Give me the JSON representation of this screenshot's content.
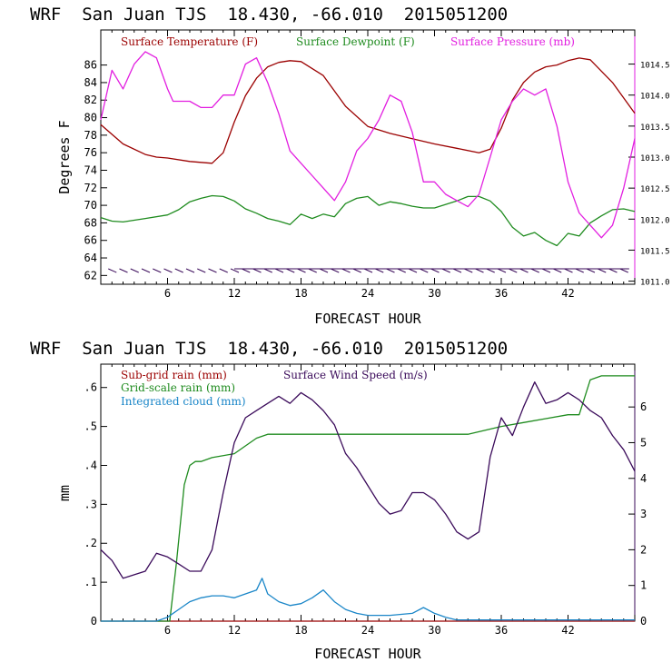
{
  "chart_data": [
    {
      "type": "line",
      "header": "WRF  San Juan TJS  18.430, -66.010  2015051200",
      "xlabel": "FORECAST HOUR",
      "ylabel": "Degrees F",
      "xlim": [
        0,
        48
      ],
      "ylim": [
        61,
        90
      ],
      "y2lim": [
        1010.95,
        1015.05
      ],
      "xticks": [
        6,
        12,
        18,
        24,
        30,
        36,
        42
      ],
      "yticks": [
        62,
        64,
        66,
        68,
        70,
        72,
        74,
        76,
        78,
        80,
        82,
        84,
        86
      ],
      "y2ticks": [
        1011.0,
        1011.5,
        1012.0,
        1012.5,
        1013.0,
        1013.5,
        1014.0,
        1014.5
      ],
      "legend_placement": "top-left, inside",
      "wind_barbs_row": true,
      "series": [
        {
          "name": "Surface Temperature (F)",
          "color": "#9b0000",
          "axis": "left",
          "x": [
            0,
            2,
            4,
            5,
            6,
            8,
            10,
            11,
            12,
            13,
            14,
            15,
            16,
            17,
            18,
            20,
            22,
            24,
            26,
            28,
            30,
            32,
            34,
            35,
            36,
            37,
            38,
            39,
            40,
            41,
            42,
            43,
            44,
            46,
            48
          ],
          "y": [
            79.2,
            77,
            75.8,
            75.5,
            75.4,
            75,
            74.8,
            76,
            79.5,
            82.5,
            84.5,
            85.8,
            86.3,
            86.5,
            86.4,
            84.8,
            81.3,
            79,
            78.2,
            77.6,
            77,
            76.5,
            76,
            76.4,
            78.8,
            82,
            84,
            85.2,
            85.8,
            86,
            86.5,
            86.8,
            86.6,
            84,
            80.5
          ]
        },
        {
          "name": "Surface Dewpoint (F)",
          "color": "#1e8b1e",
          "axis": "left",
          "x": [
            0,
            1,
            2,
            4,
            6,
            7,
            8,
            9,
            10,
            11,
            12,
            13,
            14,
            15,
            16,
            17,
            18,
            19,
            20,
            21,
            22,
            23,
            24,
            25,
            26,
            27,
            28,
            29,
            30,
            31,
            32,
            33,
            34,
            35,
            36,
            37,
            38,
            39,
            40,
            41,
            42,
            43,
            44,
            45,
            46,
            47,
            48
          ],
          "y": [
            68.6,
            68.2,
            68.1,
            68.5,
            68.9,
            69.5,
            70.4,
            70.8,
            71.1,
            71,
            70.5,
            69.6,
            69.1,
            68.5,
            68.2,
            67.8,
            69,
            68.5,
            69,
            68.7,
            70.2,
            70.8,
            71,
            70,
            70.4,
            70.2,
            69.9,
            69.7,
            69.7,
            70.1,
            70.5,
            71,
            71,
            70.5,
            69.3,
            67.5,
            66.5,
            66.9,
            66,
            65.4,
            66.8,
            66.5,
            68,
            68.8,
            69.5,
            69.6,
            69.3
          ]
        },
        {
          "name": "Surface Pressure (mb)",
          "color": "#e21ee0",
          "axis": "right",
          "x": [
            0,
            1,
            2,
            3,
            4,
            5,
            6,
            6.5,
            7,
            8,
            9,
            10,
            11,
            12,
            13,
            14,
            15,
            16,
            17,
            18,
            19,
            20,
            21,
            22,
            23,
            24,
            25,
            26,
            27,
            28,
            29,
            30,
            31,
            32,
            33,
            34,
            35,
            36,
            37,
            38,
            39,
            40,
            41,
            42,
            43,
            44,
            45,
            46,
            47,
            48
          ],
          "y": [
            1013.6,
            1014.4,
            1014.1,
            1014.5,
            1014.7,
            1014.6,
            1014.1,
            1013.9,
            1013.9,
            1013.9,
            1013.8,
            1013.8,
            1014.0,
            1014.0,
            1014.5,
            1014.6,
            1014.2,
            1013.7,
            1013.1,
            1012.9,
            1012.7,
            1012.5,
            1012.3,
            1012.6,
            1013.1,
            1013.3,
            1013.6,
            1014.0,
            1013.9,
            1013.4,
            1012.6,
            1012.6,
            1012.4,
            1012.3,
            1012.2,
            1012.4,
            1013.0,
            1013.6,
            1013.9,
            1014.1,
            1014.0,
            1014.1,
            1013.5,
            1012.6,
            1012.1,
            1011.9,
            1011.7,
            1011.9,
            1012.5,
            1013.3
          ]
        }
      ]
    },
    {
      "type": "line",
      "header": "WRF  San Juan TJS  18.430, -66.010  2015051200",
      "xlabel": "FORECAST HOUR",
      "ylabel": "mm",
      "xlim": [
        0,
        48
      ],
      "ylim": [
        0,
        0.66
      ],
      "y2lim": [
        0,
        7.2
      ],
      "xticks": [
        6,
        12,
        18,
        24,
        30,
        36,
        42
      ],
      "yticks": [
        0,
        0.1,
        0.2,
        0.3,
        0.4,
        0.5,
        0.6
      ],
      "ytick_labels": [
        "0",
        ".1",
        ".2",
        ".3",
        ".4",
        ".5",
        ".6"
      ],
      "y2ticks": [
        0,
        1,
        2,
        3,
        4,
        5,
        6
      ],
      "legend_placement": "top-left, inside",
      "series": [
        {
          "name": "Sub-grid rain (mm)",
          "color": "#9b0000",
          "axis": "left",
          "x": [
            0,
            48
          ],
          "y": [
            0,
            0
          ]
        },
        {
          "name": "Grid-scale rain (mm)",
          "color": "#1e8b1e",
          "axis": "left",
          "x": [
            0,
            6.2,
            6.8,
            7.5,
            8,
            8.5,
            9,
            10,
            12,
            13,
            14,
            15,
            16,
            20,
            24,
            30,
            33,
            36,
            38,
            40,
            42,
            43,
            44,
            45,
            48
          ],
          "y": [
            0,
            0,
            0.15,
            0.35,
            0.4,
            0.41,
            0.41,
            0.42,
            0.43,
            0.45,
            0.47,
            0.48,
            0.48,
            0.48,
            0.48,
            0.48,
            0.48,
            0.5,
            0.51,
            0.52,
            0.53,
            0.53,
            0.62,
            0.63,
            0.63
          ]
        },
        {
          "name": "Integrated cloud (mm)",
          "color": "#1a86c8",
          "axis": "left",
          "x": [
            0,
            5,
            6,
            7,
            8,
            9,
            10,
            11,
            12,
            13,
            14,
            14.5,
            15,
            16,
            17,
            18,
            19,
            20,
            21,
            22,
            23,
            24,
            26,
            28,
            29,
            30,
            31,
            32,
            48
          ],
          "y": [
            0,
            0,
            0.01,
            0.03,
            0.05,
            0.06,
            0.065,
            0.065,
            0.06,
            0.07,
            0.08,
            0.11,
            0.07,
            0.05,
            0.04,
            0.045,
            0.06,
            0.08,
            0.05,
            0.03,
            0.02,
            0.015,
            0.015,
            0.02,
            0.035,
            0.02,
            0.01,
            0.003,
            0.003
          ]
        },
        {
          "name": "Surface Wind Speed (m/s)",
          "color": "#3a0a5a",
          "axis": "right",
          "x": [
            0,
            1,
            2,
            3,
            4,
            5,
            6,
            7,
            8,
            9,
            10,
            11,
            12,
            13,
            14,
            15,
            16,
            17,
            18,
            19,
            20,
            21,
            22,
            23,
            24,
            25,
            26,
            27,
            28,
            29,
            30,
            31,
            32,
            33,
            34,
            35,
            36,
            37,
            38,
            39,
            40,
            41,
            42,
            43,
            44,
            45,
            46,
            47,
            48
          ],
          "y": [
            2.0,
            1.7,
            1.2,
            1.3,
            1.4,
            1.9,
            1.8,
            1.6,
            1.4,
            1.4,
            2.0,
            3.6,
            5.0,
            5.7,
            5.9,
            6.1,
            6.3,
            6.1,
            6.4,
            6.2,
            5.9,
            5.5,
            4.7,
            4.3,
            3.8,
            3.3,
            3.0,
            3.1,
            3.6,
            3.6,
            3.4,
            3.0,
            2.5,
            2.3,
            2.5,
            4.6,
            5.7,
            5.2,
            6.0,
            6.7,
            6.1,
            6.2,
            6.4,
            6.2,
            5.9,
            5.7,
            5.2,
            4.8,
            4.2
          ]
        }
      ]
    }
  ]
}
